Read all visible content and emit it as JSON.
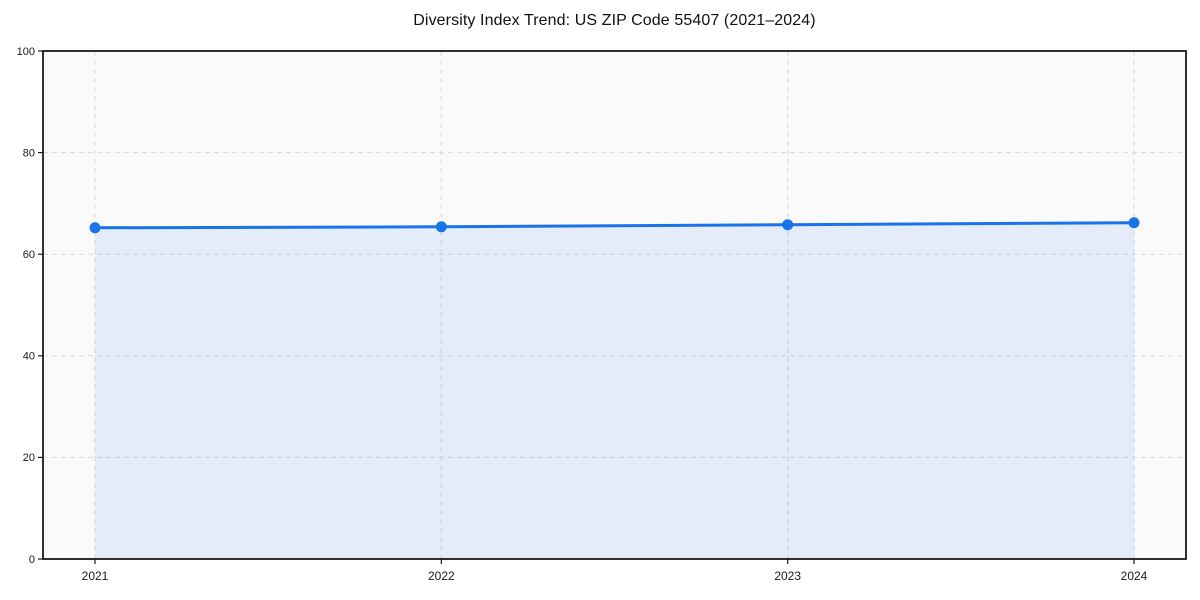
{
  "figure": {
    "background": "#ffffff"
  },
  "chart_data": {
    "type": "line",
    "title": "Diversity Index Trend: US ZIP Code 55407 (2021–2024)",
    "categories": [
      "2021",
      "2022",
      "2023",
      "2024"
    ],
    "series": [
      {
        "name": "Diversity Index",
        "values": [
          65.2,
          65.4,
          65.8,
          66.2
        ]
      }
    ],
    "xlabel": "",
    "ylabel": "",
    "ylim": [
      0,
      100
    ],
    "yticks": [
      0,
      20,
      40,
      60,
      80,
      100
    ],
    "grid": "dashed",
    "legend": "none",
    "area_under_line": true,
    "marker": "circle",
    "colors": {
      "line": "#1a73e8",
      "marker": "#1a73e8",
      "area_fill": "rgba(26,115,232,0.10)",
      "gridline": "#d9d9d9",
      "plot_background": "#fafafa",
      "spine": "#1a1a1a",
      "tick_label": "#1a1a1a",
      "title": "#111111"
    }
  }
}
